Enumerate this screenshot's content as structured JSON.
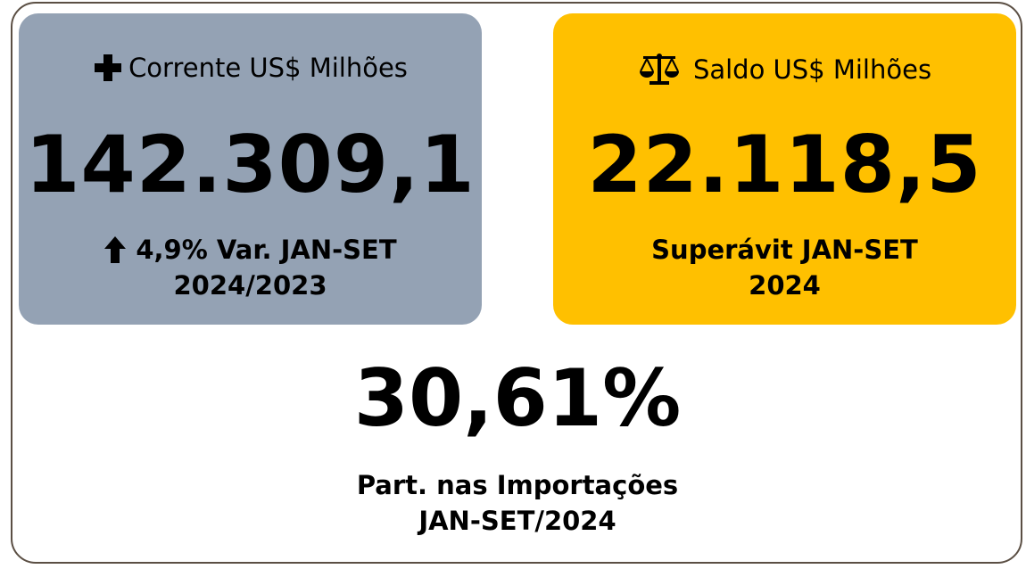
{
  "colors": {
    "card_corrente": "#94a2b4",
    "card_saldo": "#ffc000",
    "frame_border": "#5b4f44"
  },
  "corrente": {
    "icon": "plus-icon",
    "title": "Corrente US$ Milhões",
    "value": "142.309,1",
    "trend_icon": "arrow-up-icon",
    "variation": "4,9% Var. JAN-SET",
    "period": "2024/2023"
  },
  "saldo": {
    "icon": "scale-icon",
    "title": "Saldo US$ Milhões",
    "value": "22.118,5",
    "label": "Superávit JAN-SET",
    "period": "2024"
  },
  "participacao": {
    "value": "30,61%",
    "label": "Part. nas Importações",
    "period": "JAN-SET/2024"
  }
}
